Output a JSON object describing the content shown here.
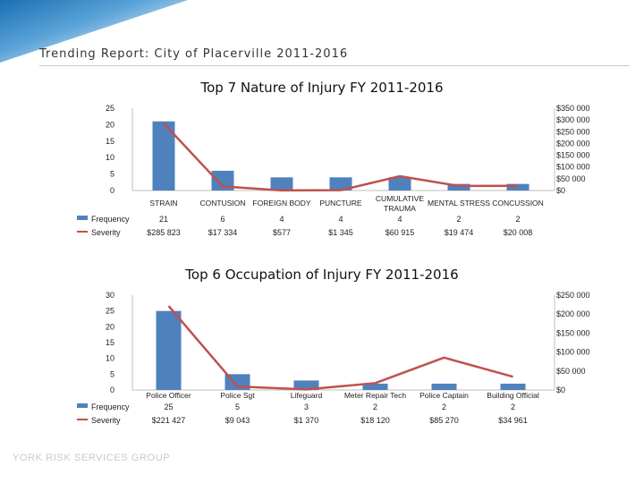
{
  "report_title": "Trending Report: City of Placerville 2011-2016",
  "footer": "YORK RISK SERVICES GROUP",
  "colors": {
    "bar": "#4f81bd",
    "line": "#c0504d",
    "text": "#222222",
    "grid": "#d0d0d0"
  },
  "chart_data": [
    {
      "type": "bar",
      "title": "Top 7 Nature of Injury FY 2011-2016",
      "categories": [
        "STRAIN",
        "CONTUSION",
        "FOREIGN BODY",
        "PUNCTURE",
        "CUMULATIVE TRAUMA",
        "MENTAL STRESS",
        "CONCUSSION"
      ],
      "series": [
        {
          "name": "Frequency",
          "type": "bar",
          "axis": "left",
          "values": [
            21,
            6,
            4,
            4,
            4,
            2,
            2
          ],
          "labels": [
            "21",
            "6",
            "4",
            "4",
            "4",
            "2",
            "2"
          ]
        },
        {
          "name": "Severity",
          "type": "line",
          "axis": "right",
          "values": [
            285823,
            17334,
            577,
            1345,
            60915,
            19474,
            20008
          ],
          "labels": [
            "$285 823",
            "$17 334",
            "$577",
            "$1 345",
            "$60 915",
            "$19 474",
            "$20 008"
          ]
        }
      ],
      "ylim_left": [
        0,
        25
      ],
      "yticks_left": [
        "0",
        "5",
        "10",
        "15",
        "20",
        "25"
      ],
      "ylim_right": [
        0,
        350000
      ],
      "yticks_right": [
        "$0",
        "$50 000",
        "$100 000",
        "$150 000",
        "$200 000",
        "$250 000",
        "$300 000",
        "$350 000"
      ]
    },
    {
      "type": "bar",
      "title": "Top 6 Occupation of Injury FY 2011-2016",
      "categories": [
        "Police Officer",
        "Police Sgt",
        "Lifeguard",
        "Meter Repair Tech",
        "Police Captain",
        "Building Official"
      ],
      "series": [
        {
          "name": "Frequency",
          "type": "bar",
          "axis": "left",
          "values": [
            25,
            5,
            3,
            2,
            2,
            2
          ],
          "labels": [
            "25",
            "5",
            "3",
            "2",
            "2",
            "2"
          ]
        },
        {
          "name": "Severity",
          "type": "line",
          "axis": "right",
          "values": [
            221427,
            9043,
            1370,
            18120,
            85270,
            34961
          ],
          "labels": [
            "$221 427",
            "$9 043",
            "$1 370",
            "$18 120",
            "$85 270",
            "$34 961"
          ]
        }
      ],
      "ylim_left": [
        0,
        30
      ],
      "yticks_left": [
        "0",
        "5",
        "10",
        "15",
        "20",
        "25",
        "30"
      ],
      "ylim_right": [
        0,
        250000
      ],
      "yticks_right": [
        "$0",
        "$50 000",
        "$100 000",
        "$150 000",
        "$200 000",
        "$250 000"
      ]
    }
  ]
}
